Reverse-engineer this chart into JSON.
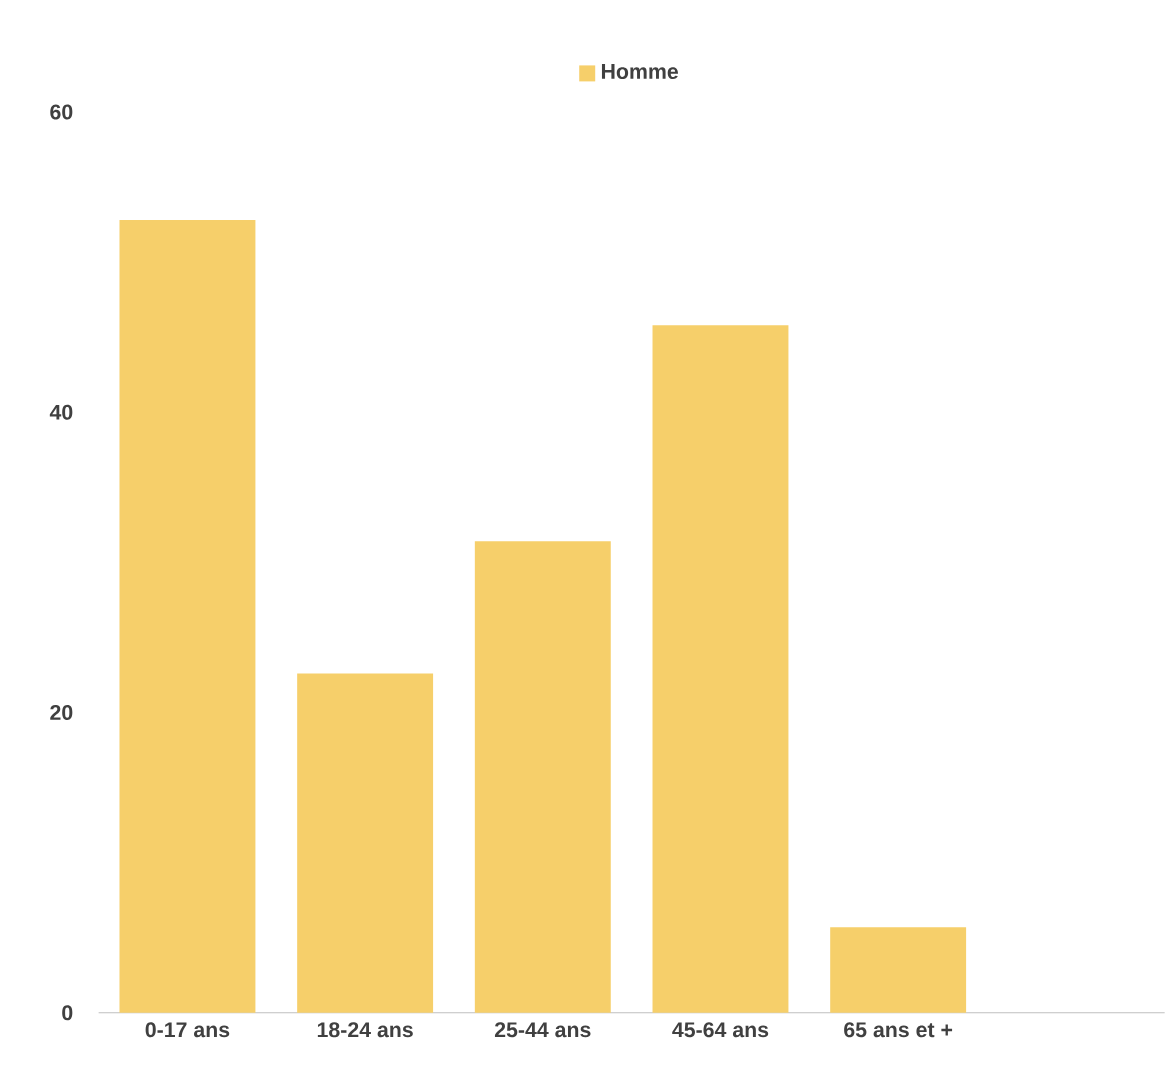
{
  "chart_data": {
    "type": "bar",
    "categories": [
      "0-17 ans",
      "18-24 ans",
      "25-44 ans",
      "45-64 ans",
      "65 ans et +",
      null
    ],
    "series": [
      {
        "name": "Homme",
        "color": "#f6cf6a",
        "values": [
          52.8,
          22.6,
          31.4,
          45.8,
          5.7,
          null
        ]
      }
    ],
    "ylim": [
      0,
      60
    ],
    "yticks": [
      0,
      20,
      40,
      60
    ],
    "grid": false,
    "legend": "top"
  }
}
